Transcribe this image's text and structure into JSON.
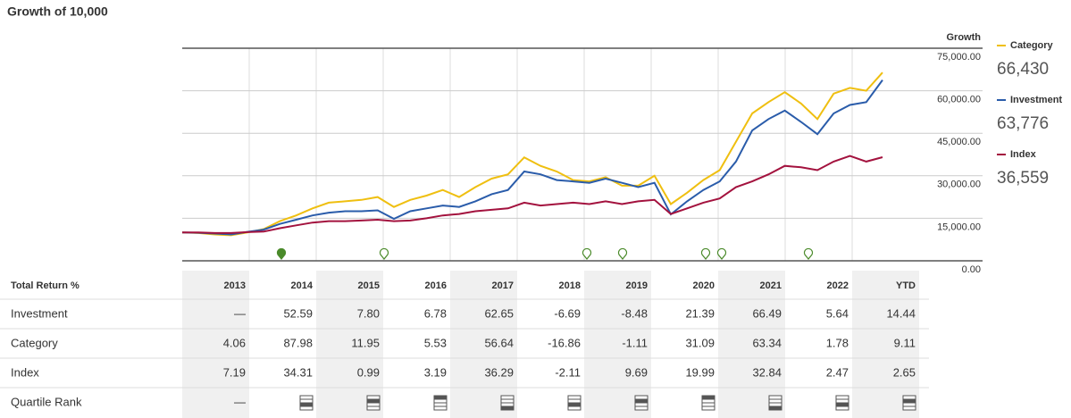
{
  "chart_data": {
    "type": "line",
    "title": "Growth of 10,000",
    "legend_title": "Growth",
    "ylim": [
      0,
      75000
    ],
    "yticks": [
      {
        "value": 0,
        "label": "0.00"
      },
      {
        "value": 15000,
        "label": "15,000.00"
      },
      {
        "value": 30000,
        "label": "30,000.00"
      },
      {
        "value": 45000,
        "label": "45,000.00"
      },
      {
        "value": 60000,
        "label": "60,000.00"
      },
      {
        "value": 75000,
        "label": "75,000.00"
      }
    ],
    "grid": true,
    "series": [
      {
        "name": "Category",
        "color": "#efbf10",
        "last_value_label": "66,430",
        "values": [
          10000,
          9800,
          9300,
          9000,
          10000,
          11200,
          14000,
          16000,
          18500,
          20500,
          21000,
          21500,
          22500,
          19000,
          21500,
          23000,
          25000,
          22500,
          26000,
          29000,
          30500,
          36500,
          33500,
          31500,
          28500,
          28000,
          29500,
          26500,
          26500,
          30000,
          20000,
          24000,
          28500,
          32000,
          42000,
          52000,
          56000,
          59500,
          55500,
          50000,
          59000,
          61000,
          60000,
          66430
        ]
      },
      {
        "name": "Investment",
        "color": "#2a5caa",
        "last_value_label": "63,776",
        "values": [
          10000,
          9900,
          9600,
          9300,
          10200,
          11000,
          13000,
          14500,
          16000,
          17000,
          17500,
          17500,
          17800,
          14800,
          17500,
          18500,
          19500,
          19000,
          21000,
          23500,
          25000,
          31500,
          30500,
          28500,
          28000,
          27500,
          29000,
          27500,
          26000,
          27500,
          16400,
          21000,
          25000,
          28000,
          35000,
          46000,
          50000,
          53000,
          49000,
          44700,
          52000,
          55000,
          56000,
          63776
        ]
      },
      {
        "name": "Index",
        "color": "#a3123e",
        "last_value_label": "36,559",
        "values": [
          10000,
          10000,
          9800,
          9800,
          10100,
          10300,
          11500,
          12500,
          13500,
          14000,
          14000,
          14200,
          14500,
          14000,
          14200,
          15000,
          16000,
          16500,
          17500,
          18000,
          18500,
          20500,
          19500,
          20000,
          20500,
          20000,
          21000,
          20000,
          21000,
          21500,
          16500,
          18500,
          20500,
          22000,
          26000,
          28000,
          30500,
          33500,
          33000,
          32000,
          35000,
          37000,
          35000,
          36559
        ]
      }
    ]
  },
  "table": {
    "header": [
      "Total Return %",
      "2013",
      "2014",
      "2015",
      "2016",
      "2017",
      "2018",
      "2019",
      "2020",
      "2021",
      "2022",
      "YTD"
    ],
    "rows": [
      [
        "Investment",
        "—",
        "52.59",
        "7.80",
        "6.78",
        "62.65",
        "-6.69",
        "-8.48",
        "21.39",
        "66.49",
        "5.64",
        "14.44"
      ],
      [
        "Category",
        "4.06",
        "87.98",
        "11.95",
        "5.53",
        "56.64",
        "-16.86",
        "-1.11",
        "31.09",
        "63.34",
        "1.78",
        "9.11"
      ],
      [
        "Index",
        "7.19",
        "34.31",
        "0.99",
        "3.19",
        "36.29",
        "-2.11",
        "9.69",
        "19.99",
        "32.84",
        "2.47",
        "2.65"
      ],
      [
        "Quartile Rank",
        "—"
      ]
    ]
  }
}
